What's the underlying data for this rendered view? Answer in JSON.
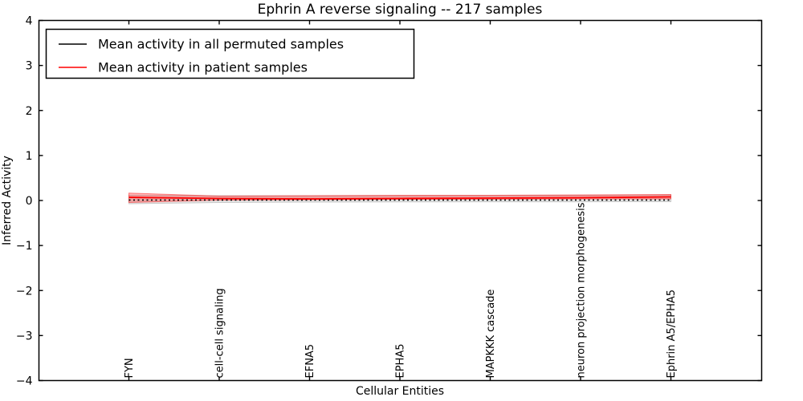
{
  "figure": {
    "background": "#ffffff",
    "axes_color": "#000000"
  },
  "chart_data": {
    "type": "line",
    "title": "Ephrin A  reverse signaling -- 217 samples",
    "xlabel": "Cellular Entities",
    "ylabel": "Inferred Activity",
    "ylim": [
      -4,
      4
    ],
    "yticks": [
      4,
      3,
      2,
      1,
      0,
      -1,
      -2,
      -3,
      -4
    ],
    "grid": false,
    "legend_position": "upper left",
    "categories": [
      "FYN",
      "cell-cell signaling",
      "EFNA5",
      "EPHA5",
      "MAPKKK cascade",
      "neuron projection morphogenesis",
      "Ephrin A5/EPHA5"
    ],
    "legend": [
      {
        "label": "Mean activity in all permuted samples",
        "color": "#000000",
        "style": "solid"
      },
      {
        "label": "Mean activity in patient samples",
        "color": "#ff0000",
        "style": "solid"
      }
    ],
    "series": [
      {
        "name": "Mean activity in all permuted samples",
        "color": "#000000",
        "style": "dotted",
        "values": [
          0.01,
          0.01,
          0.01,
          0.01,
          0.01,
          0.01,
          0.01
        ]
      },
      {
        "name": "Mean activity in patient samples",
        "color": "#ff0000",
        "style": "solid",
        "values": [
          0.07,
          0.045,
          0.036,
          0.045,
          0.053,
          0.062,
          0.08
        ]
      }
    ],
    "bands": [
      {
        "name": "permuted-samples-range",
        "fill": "#e4e4e4",
        "edge": "#c9c9c9",
        "upper": [
          0.116,
          0.107,
          0.107,
          0.107,
          0.11,
          0.115,
          0.124
        ],
        "lower": [
          -0.071,
          -0.045,
          -0.036,
          -0.032,
          -0.03,
          -0.028,
          -0.027
        ]
      },
      {
        "name": "patient-samples-range",
        "fill": "rgba(255,0,0,0.28)",
        "edge": "rgba(255,0,0,0.45)",
        "upper": [
          0.165,
          0.098,
          0.107,
          0.116,
          0.116,
          0.124,
          0.133
        ],
        "lower": [
          -0.044,
          0.009,
          0.018,
          0.027,
          0.03,
          0.036,
          0.036
        ]
      }
    ]
  }
}
